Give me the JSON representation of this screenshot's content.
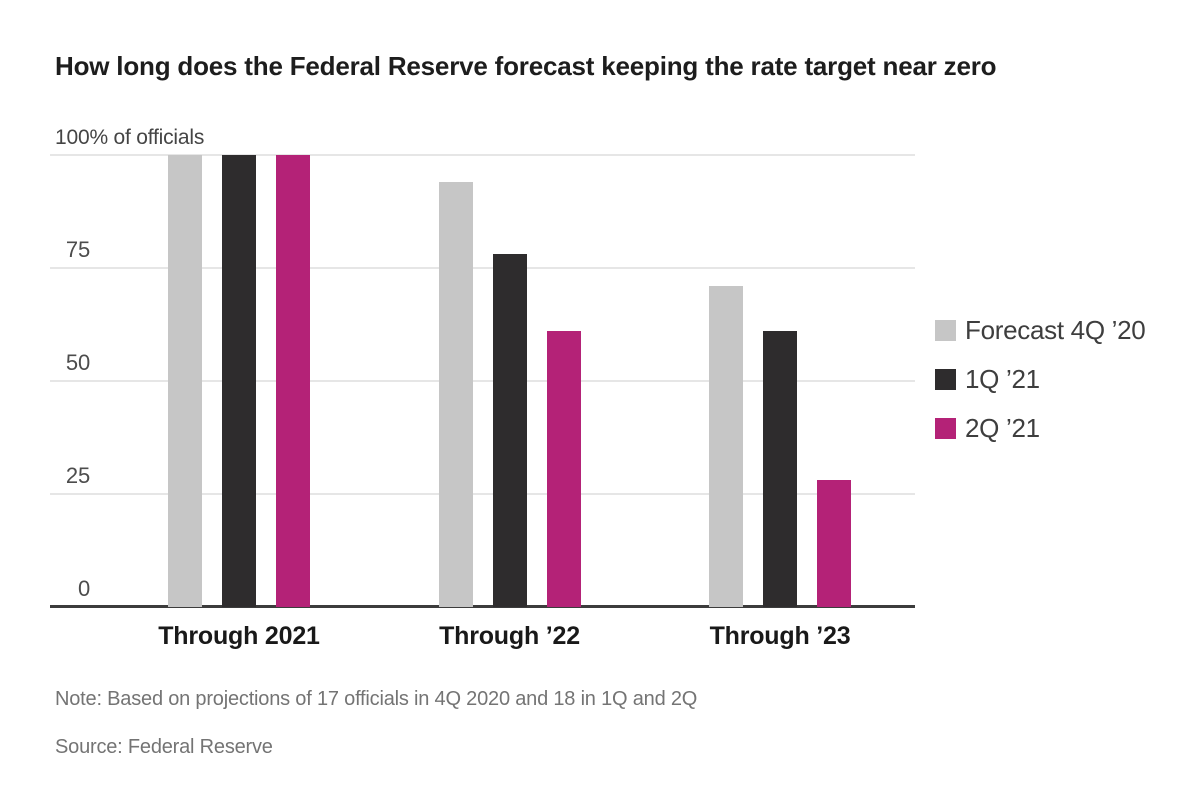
{
  "page": {
    "title": "How long does the Federal Reserve forecast keeping the rate target near zero",
    "note": "Note: Based on projections of 17 officials in 4Q 2020 and 18 in 1Q and 2Q",
    "source": "Source: Federal Reserve"
  },
  "colors": {
    "gridline": "#e6e6e6",
    "axis": "#3c3c3c",
    "series_gray": "#c6c6c6",
    "series_black": "#2e2c2d",
    "series_magenta": "#b42277"
  },
  "chart_data": {
    "type": "bar",
    "title": "How long does the Federal Reserve forecast keeping the rate target near zero",
    "unit_label": "100% of officials",
    "categories": [
      "Through 2021",
      "Through ’22",
      "Through ’23"
    ],
    "series": [
      {
        "name": "Forecast 4Q ’20",
        "color": "#c6c6c6",
        "values": [
          100,
          94,
          71
        ]
      },
      {
        "name": "1Q ’21",
        "color": "#2e2c2d",
        "values": [
          100,
          78,
          61
        ]
      },
      {
        "name": "2Q ’21",
        "color": "#b42277",
        "values": [
          100,
          61,
          28
        ]
      }
    ],
    "y_ticks": [
      0,
      25,
      50,
      75,
      100
    ],
    "y_tick_labels": [
      "0",
      "25",
      "50",
      "75"
    ],
    "ylim": [
      0,
      100
    ],
    "grid": true,
    "legend_position": "right",
    "xlabel": "",
    "ylabel": "% of officials",
    "note": "Note: Based on projections of 17 officials in 4Q 2020 and 18 in 1Q and 2Q",
    "source": "Source: Federal Reserve"
  }
}
